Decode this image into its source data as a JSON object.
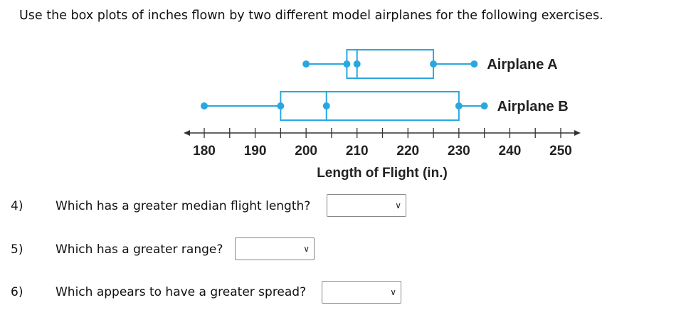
{
  "instructions": "Use the box plots of inches flown by two different model airplanes for the following exercises.",
  "chart_data": {
    "type": "boxplot",
    "xlabel": "Length of Flight (in.)",
    "xlim": [
      180,
      250
    ],
    "ticks": [
      180,
      190,
      200,
      210,
      220,
      230,
      240,
      250
    ],
    "minor_tick_step": 5,
    "color": "#29a8e0",
    "series": [
      {
        "name": "Airplane A",
        "min": 200,
        "q1": 208,
        "median": 210,
        "q3": 225,
        "max": 233
      },
      {
        "name": "Airplane B",
        "min": 180,
        "q1": 195,
        "median": 204,
        "q3": 230,
        "max": 235
      }
    ]
  },
  "questions": [
    {
      "number": "4)",
      "text": "Which has a greater median flight length?",
      "selected": ""
    },
    {
      "number": "5)",
      "text": "Which has a greater range?",
      "selected": ""
    },
    {
      "number": "6)",
      "text": "Which appears to have a greater spread?",
      "selected": ""
    }
  ]
}
